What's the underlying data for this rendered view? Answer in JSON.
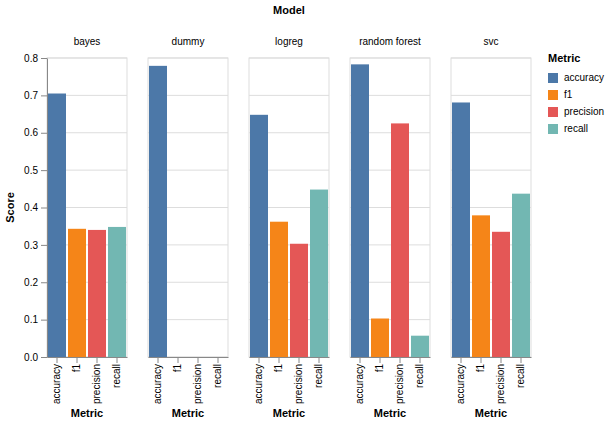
{
  "chart_data": {
    "type": "bar",
    "title": "Model",
    "x_label": "Metric",
    "y_label": "Score",
    "legend_title": "Metric",
    "legend": "right",
    "categories": [
      "accuracy",
      "f1",
      "precision",
      "recall"
    ],
    "colors": [
      "#4c78a8",
      "#f58518",
      "#e45756",
      "#72b7b2"
    ],
    "facets": [
      {
        "title": "bayes",
        "values": [
          0.705,
          0.343,
          0.34,
          0.348
        ]
      },
      {
        "title": "dummy",
        "values": [
          0.779,
          0,
          0,
          0
        ]
      },
      {
        "title": "logreg",
        "values": [
          0.648,
          0.362,
          0.303,
          0.448
        ]
      },
      {
        "title": "random forest",
        "values": [
          0.783,
          0.103,
          0.625,
          0.057
        ]
      },
      {
        "title": "svc",
        "values": [
          0.681,
          0.379,
          0.335,
          0.437
        ]
      }
    ],
    "ylim": [
      0,
      0.8
    ],
    "yticks": [
      {
        "value": 0,
        "label": "0.0"
      },
      0.1,
      0.2,
      0.3,
      0.4,
      0.5,
      0.6,
      0.7,
      0.8
    ],
    "grid": true
  }
}
